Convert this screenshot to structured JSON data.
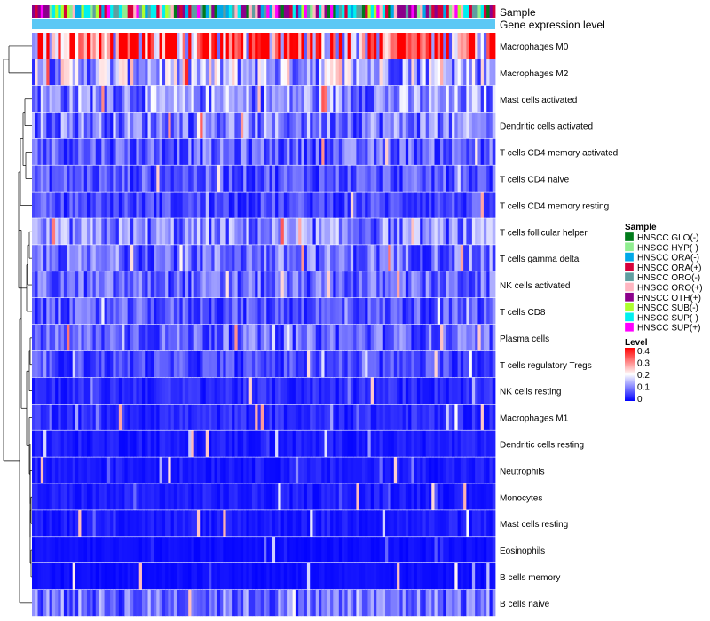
{
  "chart_data": {
    "type": "heatmap",
    "title": "",
    "annotation_labels": [
      "Sample",
      "Gene expression level"
    ],
    "rows": [
      {
        "label": "Macrophages M0",
        "mean": 0.3
      },
      {
        "label": "Macrophages M2",
        "mean": 0.13
      },
      {
        "label": "Mast cells activated",
        "mean": 0.1
      },
      {
        "label": "Dendritic cells activated",
        "mean": 0.09
      },
      {
        "label": "T cells CD4 memory activated",
        "mean": 0.07
      },
      {
        "label": "T cells CD4 naive",
        "mean": 0.06
      },
      {
        "label": "T cells CD4 memory resting",
        "mean": 0.05
      },
      {
        "label": "T cells follicular helper",
        "mean": 0.09
      },
      {
        "label": "T cells gamma delta",
        "mean": 0.08
      },
      {
        "label": "NK cells activated",
        "mean": 0.07
      },
      {
        "label": "T cells CD8",
        "mean": 0.06
      },
      {
        "label": "Plasma cells",
        "mean": 0.07
      },
      {
        "label": "T cells regulatory  Tregs",
        "mean": 0.05
      },
      {
        "label": "NK cells resting",
        "mean": 0.03
      },
      {
        "label": "Macrophages M1",
        "mean": 0.03
      },
      {
        "label": "Dendritic cells resting",
        "mean": 0.02
      },
      {
        "label": "Neutrophils",
        "mean": 0.02
      },
      {
        "label": "Monocytes",
        "mean": 0.02
      },
      {
        "label": "Mast cells resting",
        "mean": 0.02
      },
      {
        "label": "Eosinophils",
        "mean": 0.01
      },
      {
        "label": "B cells memory",
        "mean": 0.01
      },
      {
        "label": "B cells naive",
        "mean": 0.08
      }
    ],
    "n_samples": 160,
    "sample_groups": [
      {
        "label": "HNSCC GLO(-)",
        "color": "#007a1a"
      },
      {
        "label": "HNSCC HYP(-)",
        "color": "#90ee90"
      },
      {
        "label": "HNSCC ORA(-)",
        "color": "#00a8e8"
      },
      {
        "label": "HNSCC ORA(+)",
        "color": "#d6003a"
      },
      {
        "label": "HNSCC ORO(-)",
        "color": "#5f9ea0"
      },
      {
        "label": "HNSCC ORO(+)",
        "color": "#ffb6c1"
      },
      {
        "label": "HNSCC OTH(+)",
        "color": "#8b008b"
      },
      {
        "label": "HNSCC SUB(-)",
        "color": "#adff2f"
      },
      {
        "label": "HNSCC SUP(-)",
        "color": "#00f0f0"
      },
      {
        "label": "HNSCC SUP(+)",
        "color": "#ff00ff"
      }
    ],
    "sample_legend_title": "Sample",
    "gene_expression_color": "#5bc8f5",
    "level_legend": {
      "title": "Level",
      "range": [
        0,
        0.4
      ],
      "ticks": [
        "0.4",
        "0.3",
        "0.2",
        "0.1",
        "0"
      ],
      "colors": [
        "#0000ff",
        "#ffffff",
        "#ff0000"
      ]
    }
  }
}
